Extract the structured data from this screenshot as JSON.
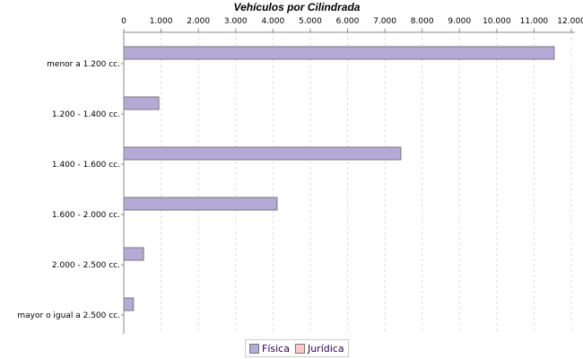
{
  "chart_data": {
    "type": "bar",
    "orientation": "horizontal",
    "title": "Vehículos por Cilindrada",
    "xlabel": "",
    "ylabel": "",
    "categories": [
      "menor a 1.200 cc.",
      "1.200 - 1.400 cc.",
      "1.400 - 1.600 cc.",
      "1.600 - 2.000 cc.",
      "2.000 - 2.500 cc.",
      "mayor o igual a 2.500 cc."
    ],
    "series": [
      {
        "name": "Física",
        "color": "#b4aad6",
        "values": [
          11540,
          940,
          7430,
          4110,
          530,
          260
        ]
      },
      {
        "name": "Jurídica",
        "color": "#ffc8c8",
        "values": [
          0,
          0,
          0,
          0,
          0,
          0
        ]
      }
    ],
    "xlim": [
      0,
      12000
    ],
    "xticks": [
      0,
      1000,
      2000,
      3000,
      4000,
      5000,
      6000,
      7000,
      8000,
      9000,
      10000,
      11000,
      12000
    ],
    "xtick_labels": [
      "0",
      "1.000",
      "2.000",
      "3.000",
      "4.000",
      "5.000",
      "6.000",
      "7.000",
      "8.000",
      "9.000",
      "10.000",
      "11.000",
      "12.000"
    ],
    "grid": true,
    "legend_position": "bottom"
  }
}
